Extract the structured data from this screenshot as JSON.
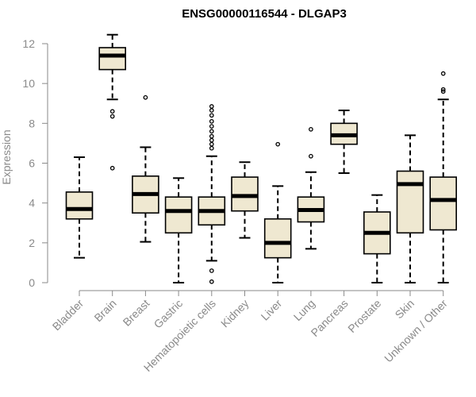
{
  "chart_data": {
    "type": "box",
    "title": "ENSG00000116544 - DLGAP3",
    "ylabel": "Expression",
    "xlabel": "",
    "ylim": [
      0,
      12.5
    ],
    "yticks": [
      0,
      2,
      4,
      6,
      8,
      10,
      12
    ],
    "box_fill": "#efe8d1",
    "box_stroke": "#000000",
    "categories": [
      "Bladder",
      "Brain",
      "Breast",
      "Gastric",
      "Hematopoietic cells",
      "Kidney",
      "Liver",
      "Lung",
      "Pancreas",
      "Prostate",
      "Skin",
      "Unknown / Other"
    ],
    "boxes": [
      {
        "min": 1.25,
        "q1": 3.2,
        "median": 3.7,
        "q3": 4.55,
        "max": 6.3,
        "outliers": []
      },
      {
        "min": 9.2,
        "q1": 10.7,
        "median": 11.4,
        "q3": 11.8,
        "max": 12.45,
        "outliers": [
          8.6,
          8.35,
          5.75
        ]
      },
      {
        "min": 2.05,
        "q1": 3.5,
        "median": 4.45,
        "q3": 5.35,
        "max": 6.8,
        "outliers": [
          9.3
        ]
      },
      {
        "min": 0.0,
        "q1": 2.5,
        "median": 3.6,
        "q3": 4.3,
        "max": 5.25,
        "outliers": []
      },
      {
        "min": 1.1,
        "q1": 2.9,
        "median": 3.6,
        "q3": 4.3,
        "max": 6.35,
        "outliers": [
          8.85,
          8.65,
          8.4,
          8.1,
          7.85,
          7.6,
          7.35,
          7.15,
          6.95,
          6.75,
          0.6,
          0.05
        ]
      },
      {
        "min": 2.25,
        "q1": 3.6,
        "median": 4.35,
        "q3": 5.3,
        "max": 6.05,
        "outliers": []
      },
      {
        "min": 0.0,
        "q1": 1.25,
        "median": 2.0,
        "q3": 3.2,
        "max": 4.85,
        "outliers": [
          6.95
        ]
      },
      {
        "min": 1.7,
        "q1": 3.05,
        "median": 3.65,
        "q3": 4.3,
        "max": 5.55,
        "outliers": [
          7.7,
          6.35
        ]
      },
      {
        "min": 5.5,
        "q1": 6.95,
        "median": 7.4,
        "q3": 8.0,
        "max": 8.65,
        "outliers": []
      },
      {
        "min": 0.0,
        "q1": 1.45,
        "median": 2.5,
        "q3": 3.55,
        "max": 4.4,
        "outliers": []
      },
      {
        "min": 0.0,
        "q1": 2.5,
        "median": 4.95,
        "q3": 5.6,
        "max": 7.4,
        "outliers": []
      },
      {
        "min": 0.0,
        "q1": 2.65,
        "median": 4.15,
        "q3": 5.3,
        "max": 9.2,
        "outliers": [
          10.5,
          9.7,
          9.6
        ]
      }
    ]
  }
}
